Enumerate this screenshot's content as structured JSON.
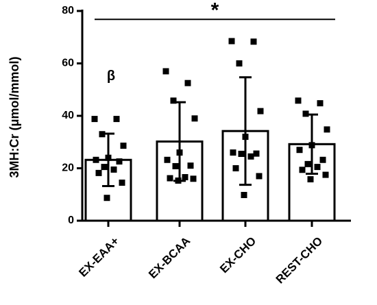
{
  "chart_data": {
    "type": "bar",
    "categories": [
      "EX-EAA+",
      "EX-BCAA",
      "EX-CHO",
      "REST-CHO"
    ],
    "values": [
      23.2,
      30.2,
      34.2,
      29.2
    ],
    "sd": [
      10.0,
      15.0,
      20.5,
      11.3
    ],
    "points": [
      [
        38.8,
        38.8,
        33.0,
        28.6,
        24.0,
        23.2,
        22.6,
        20.5,
        19.5,
        18.2,
        14.5,
        8.7
      ],
      [
        57.0,
        52.5,
        45.8,
        39.0,
        26.0,
        23.2,
        21.0,
        20.8,
        16.6,
        16.2,
        16.0,
        15.3
      ],
      [
        68.5,
        68.3,
        60.0,
        41.8,
        32.0,
        26.0,
        25.6,
        25.5,
        24.5,
        20.0,
        17.0,
        9.8
      ],
      [
        45.8,
        44.8,
        40.8,
        34.8,
        28.8,
        27.0,
        23.2,
        21.6,
        20.5,
        19.4,
        17.5,
        15.8
      ]
    ],
    "ylabel": "3MH:Cr (μmol/mmol)",
    "ylim": [
      0,
      80
    ],
    "yticks": [
      0,
      20,
      40,
      60,
      80
    ],
    "grid": false,
    "bar_fill": "#ffffff",
    "bar_stroke": "#000000",
    "point_color": "#000000",
    "annotations": {
      "significance_symbol": "*",
      "group_symbol": "β",
      "significance_span": [
        "EX-EAA+",
        "REST-CHO"
      ],
      "group_symbol_category": "EX-EAA+",
      "significance_bar_value": 76.8,
      "group_symbol_value": 55.0
    }
  }
}
